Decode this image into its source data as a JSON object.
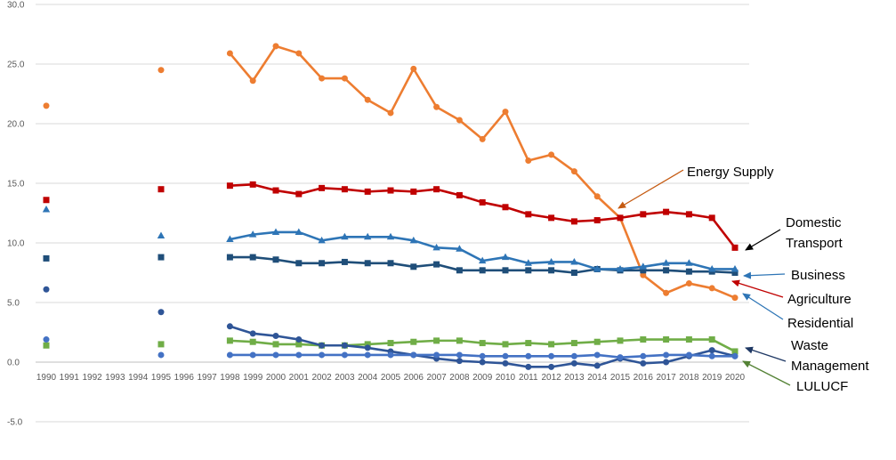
{
  "chart_data": {
    "type": "line",
    "title": "",
    "xlabel": "",
    "ylabel": "",
    "ylim": [
      -5,
      30
    ],
    "yticks": [
      "-5.0",
      "0.0",
      "5.0",
      "10.0",
      "15.0",
      "20.0",
      "25.0",
      "30.0"
    ],
    "categories": [
      "1990",
      "1991",
      "1992",
      "1993",
      "1994",
      "1995",
      "1996",
      "1997",
      "1998",
      "1999",
      "2000",
      "2001",
      "2002",
      "2003",
      "2004",
      "2005",
      "2006",
      "2007",
      "2008",
      "2009",
      "2010",
      "2011",
      "2012",
      "2013",
      "2014",
      "2015",
      "2016",
      "2017",
      "2018",
      "2019",
      "2020"
    ],
    "grid": "horizontal",
    "legend": "none",
    "series": [
      {
        "name": "Energy Supply",
        "color": "#ED7D31",
        "marker": "circle",
        "values": [
          21.5,
          null,
          null,
          null,
          null,
          24.5,
          null,
          null,
          25.9,
          23.6,
          26.5,
          25.9,
          23.8,
          23.8,
          22.0,
          20.9,
          24.6,
          21.4,
          20.3,
          18.7,
          21.0,
          16.9,
          17.4,
          16.0,
          13.9,
          12.1,
          7.3,
          5.8,
          6.6,
          6.2,
          5.4
        ]
      },
      {
        "name": "Domestic Transport",
        "color": "#C00000",
        "marker": "square",
        "values": [
          13.6,
          null,
          null,
          null,
          null,
          14.5,
          null,
          null,
          14.8,
          14.9,
          14.4,
          14.1,
          14.6,
          14.5,
          14.3,
          14.4,
          14.3,
          14.5,
          14.0,
          13.4,
          13.0,
          12.4,
          12.1,
          11.8,
          11.9,
          12.1,
          12.4,
          12.6,
          12.4,
          12.1,
          9.6
        ]
      },
      {
        "name": "Business",
        "color": "#1F4E79",
        "marker": "square",
        "values": [
          8.7,
          null,
          null,
          null,
          null,
          8.8,
          null,
          null,
          8.8,
          8.8,
          8.6,
          8.3,
          8.3,
          8.4,
          8.3,
          8.3,
          8.0,
          8.2,
          7.7,
          7.7,
          7.7,
          7.7,
          7.7,
          7.5,
          7.8,
          7.7,
          7.7,
          7.7,
          7.6,
          7.6,
          7.5
        ]
      },
      {
        "name": "Residential",
        "color": "#2E75B6",
        "marker": "triangle",
        "values": [
          12.8,
          null,
          null,
          null,
          null,
          10.6,
          null,
          null,
          10.3,
          10.7,
          10.9,
          10.9,
          10.2,
          10.5,
          10.5,
          10.5,
          10.2,
          9.6,
          9.5,
          8.5,
          8.8,
          8.3,
          8.4,
          8.4,
          7.8,
          7.8,
          8.0,
          8.3,
          8.3,
          7.8,
          7.8
        ]
      },
      {
        "name": "Agriculture",
        "color": "#70AD47",
        "marker": "square",
        "values": [
          1.4,
          null,
          null,
          null,
          null,
          1.5,
          null,
          null,
          1.8,
          1.7,
          1.5,
          1.5,
          1.4,
          1.4,
          1.5,
          1.6,
          1.7,
          1.8,
          1.8,
          1.6,
          1.5,
          1.6,
          1.5,
          1.6,
          1.7,
          1.8,
          1.9,
          1.9,
          1.9,
          1.9,
          0.9
        ]
      },
      {
        "name": "Waste Management",
        "color": "#2F5597",
        "marker": "circle",
        "values": [
          6.1,
          null,
          null,
          null,
          null,
          4.2,
          null,
          null,
          3.0,
          2.4,
          2.2,
          1.9,
          1.4,
          1.4,
          1.2,
          0.9,
          0.6,
          0.3,
          0.1,
          0.0,
          -0.1,
          -0.4,
          -0.4,
          -0.1,
          -0.3,
          0.3,
          -0.1,
          0.0,
          0.5,
          1.0,
          0.5
        ]
      },
      {
        "name": "LULUCF",
        "color": "#4472C4",
        "marker": "circle",
        "values": [
          1.9,
          null,
          null,
          null,
          null,
          0.6,
          null,
          null,
          0.6,
          0.6,
          0.6,
          0.6,
          0.6,
          0.6,
          0.6,
          0.6,
          0.6,
          0.6,
          0.6,
          0.5,
          0.5,
          0.5,
          0.5,
          0.5,
          0.6,
          0.4,
          0.5,
          0.6,
          0.6,
          0.5,
          0.5
        ]
      }
    ],
    "annotations": [
      {
        "series": "Energy Supply",
        "lines": [
          "Energy Supply"
        ],
        "arrow_color": "#C55A11"
      },
      {
        "series": "Domestic Transport",
        "lines": [
          "Domestic",
          "Transport"
        ],
        "arrow_color": "#000000"
      },
      {
        "series": "Business",
        "lines": [
          "Business"
        ],
        "arrow_color": "#2E75B6"
      },
      {
        "series": "Agriculture",
        "lines": [
          "Agriculture"
        ],
        "arrow_color": "#C00000"
      },
      {
        "series": "Residential",
        "lines": [
          "Residential"
        ],
        "arrow_color": "#2E75B6"
      },
      {
        "series": "Waste Management",
        "lines": [
          "Waste",
          "Management"
        ],
        "arrow_color": "#1F3864"
      },
      {
        "series": "LULUCF",
        "lines": [
          "LULUCF"
        ],
        "arrow_color": "#548235"
      }
    ]
  }
}
